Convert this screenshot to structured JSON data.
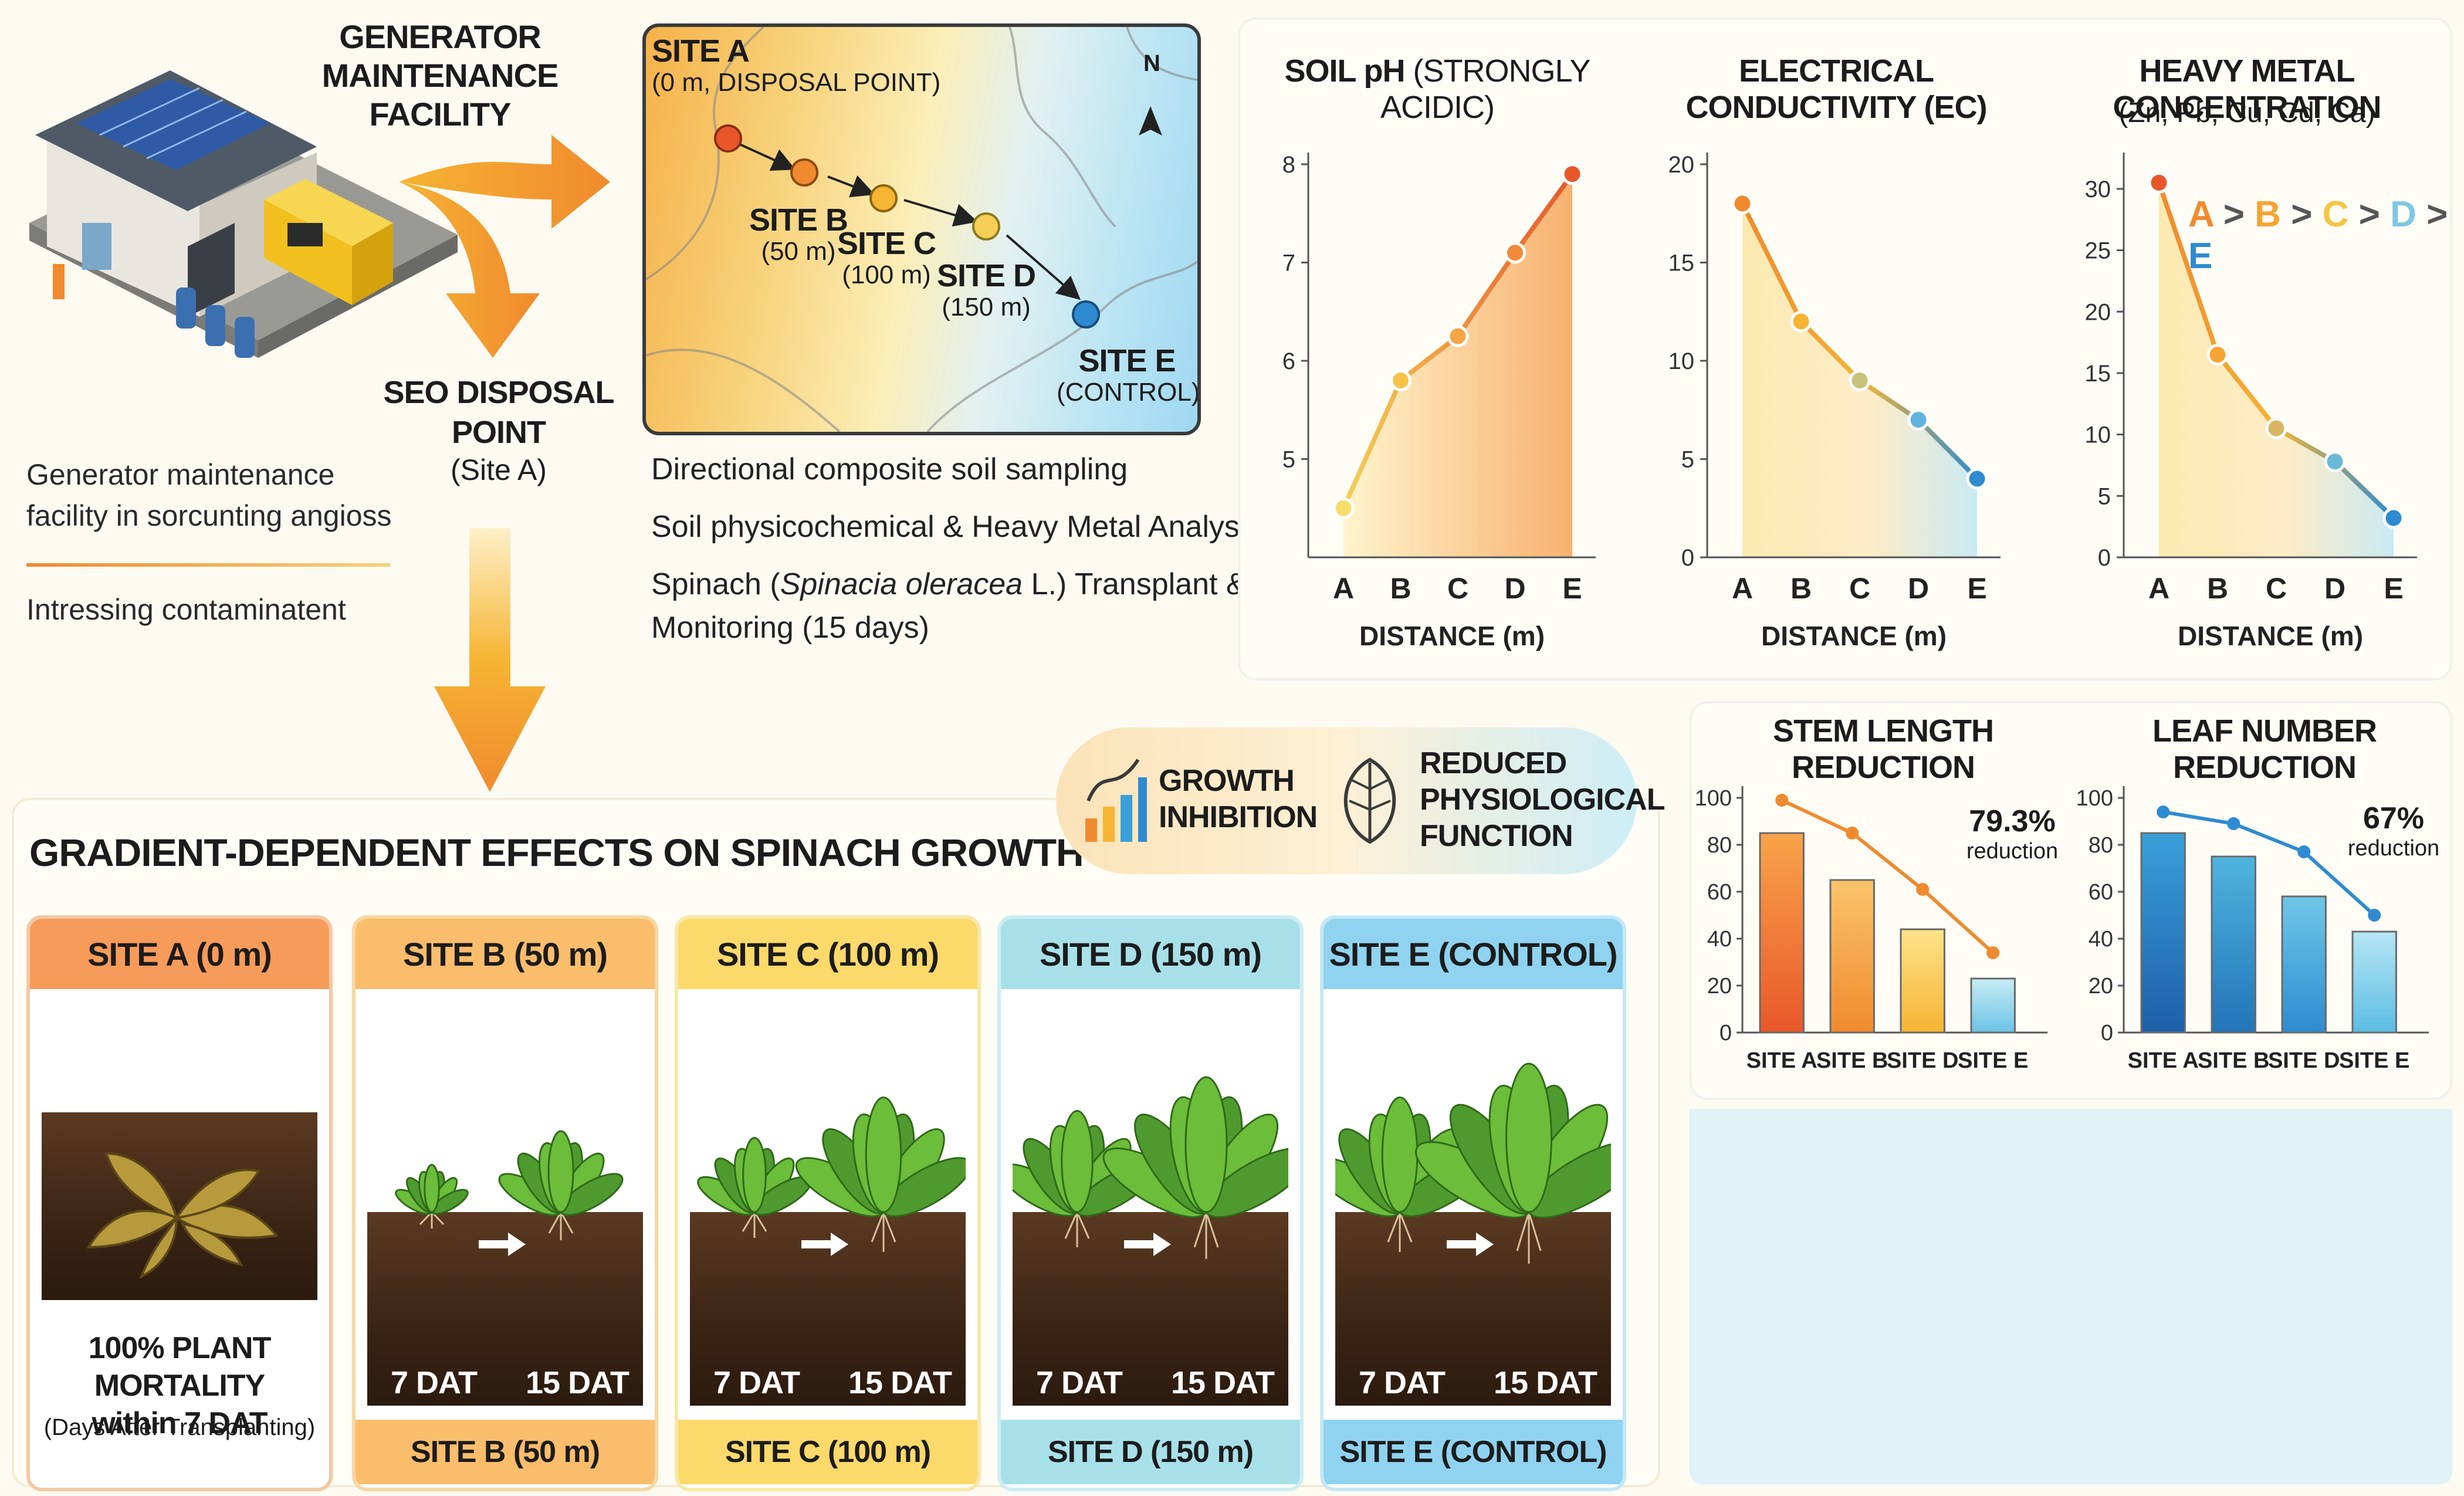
{
  "facility": {
    "title_lines": [
      "GENERATOR",
      "MAINTENANCE",
      "FACILITY"
    ]
  },
  "seo": {
    "title_lines": [
      "SEO DISPOSAL",
      "POINT"
    ],
    "subtitle": "(Site A)"
  },
  "legend": {
    "line1": "Generator maintenance",
    "line2": "facility in sorcunting angioss",
    "line3": "Intressing contaminatent"
  },
  "map": {
    "compass": "N",
    "sites": [
      {
        "name": "SITE A",
        "sub": "(0 m, DISPOSAL POINT)",
        "color": "#e8572a"
      },
      {
        "name": "SITE B",
        "sub": "(50 m)",
        "color": "#f08a2e"
      },
      {
        "name": "SITE C",
        "sub": "(100 m)",
        "color": "#f6b433"
      },
      {
        "name": "SITE D",
        "sub": "(150 m)",
        "color": "#f5cf55"
      },
      {
        "name": "SITE E",
        "sub": "(CONTROL)",
        "color": "#2e8bd1"
      }
    ]
  },
  "methods": [
    {
      "text": "Directional composite soil sampling"
    },
    {
      "text": "Soil physicochemical & Heavy Metal Analysis"
    },
    {
      "pre": "Spinach (",
      "italic": "Spinacia oleracea",
      "post": " L.) Transplant &",
      "line2": "Monitoring (15 days)"
    }
  ],
  "chart_data": [
    {
      "type": "line",
      "title": "SOIL pH",
      "title_note": "(STRONGLY ACIDIC)",
      "xlabel": "DISTANCE (m)",
      "categories": [
        "A",
        "B",
        "C",
        "D",
        "E"
      ],
      "values": [
        4.5,
        5.8,
        6.25,
        7.1,
        7.9
      ],
      "ylim": [
        4,
        8
      ],
      "yticks": [
        5,
        6,
        7,
        8
      ]
    },
    {
      "type": "line",
      "title": "ELECTRICAL CONDUCTIVITY (EC)",
      "xlabel": "DISTANCE (m)",
      "categories": [
        "A",
        "B",
        "C",
        "D",
        "E"
      ],
      "values": [
        18,
        12,
        9,
        7,
        4
      ],
      "ylim": [
        0,
        20
      ],
      "yticks": [
        0,
        5,
        10,
        15,
        20
      ]
    },
    {
      "type": "line",
      "title": "HEAVY METAL CONCENTRATION",
      "subtitle": "(Zn, Pb, Cu, Cd, Ca)",
      "xlabel": "DISTANCE (m)",
      "categories": [
        "A",
        "B",
        "C",
        "D",
        "E"
      ],
      "values": [
        30.5,
        16.5,
        10.5,
        7.8,
        3.2
      ],
      "ylim": [
        0,
        32
      ],
      "yticks": [
        0,
        5,
        10,
        15,
        20,
        25,
        30
      ],
      "annotation": [
        "A",
        ">",
        "B",
        ">",
        "C",
        ">",
        "D",
        ">",
        "E"
      ]
    },
    {
      "type": "bar",
      "title": "STEM LENGTH REDUCTION",
      "categories": [
        "SITE A",
        "SITE B",
        "SITE D",
        "SITE E"
      ],
      "values": [
        85,
        65,
        44,
        23
      ],
      "line_values": [
        99,
        85,
        61,
        34
      ],
      "ylim": [
        0,
        100
      ],
      "yticks": [
        0,
        20,
        40,
        60,
        80,
        100
      ],
      "annotation_value": "79.3%",
      "annotation_label": "reduction"
    },
    {
      "type": "bar",
      "title": "LEAF NUMBER REDUCTION",
      "categories": [
        "SITE A",
        "SITE B",
        "SITE D",
        "SITE E"
      ],
      "values": [
        85,
        75,
        58,
        43
      ],
      "line_values": [
        94,
        89,
        77,
        50
      ],
      "ylim": [
        0,
        100
      ],
      "yticks": [
        0,
        20,
        40,
        60,
        80,
        100
      ],
      "annotation_value": "67%",
      "annotation_label": "reduction"
    }
  ],
  "effects": {
    "title": "GRADIENT-DEPENDENT EFFECTS ON SPINACH GROWTH",
    "badge1": [
      "GROWTH",
      "INHIBITION"
    ],
    "badge2": [
      "REDUCED",
      "PHYSIOLOGICAL",
      "FUNCTION"
    ],
    "cards": [
      {
        "head": "SITE A (0 m)",
        "mortality_lines": [
          "100% PLANT MORTALITY",
          "within 7 DAT"
        ],
        "mortality_note": "(Days After Transplanting)",
        "head_color": "#f79b5a",
        "border": "#f2c9a4"
      },
      {
        "head": "SITE B (50 m)",
        "foot": "SITE B (50 m)",
        "dat1": "7 DAT",
        "dat2": "15 DAT",
        "head_color": "#f9bd6c",
        "border": "#f7d7a4"
      },
      {
        "head": "SITE C (100 m)",
        "foot": "SITE C (100 m)",
        "dat1": "7 DAT",
        "dat2": "15 DAT",
        "head_color": "#fbd96a",
        "border": "#f8e7a8"
      },
      {
        "head": "SITE D (150 m)",
        "foot": "SITE D (150 m)",
        "dat1": "7 DAT",
        "dat2": "15 DAT",
        "head_color": "#a8e0ea",
        "border": "#cdeef3"
      },
      {
        "head": "SITE E (CONTROL)",
        "foot": "SITE E (CONTROL)",
        "dat1": "7 DAT",
        "dat2": "15 DAT",
        "head_color": "#8fd3f0",
        "border": "#c3e8f6"
      }
    ]
  },
  "colors": {
    "orange": "#f08a2e",
    "blue": "#2e8bd1",
    "yellow": "#f5c542"
  }
}
